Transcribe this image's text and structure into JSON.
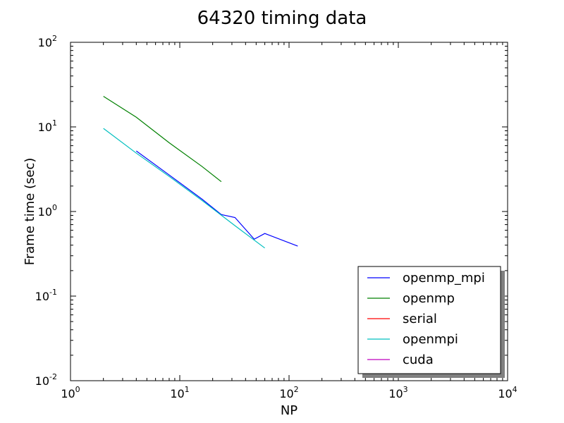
{
  "chart_data": {
    "type": "line",
    "title": "64320 timing data",
    "xlabel": "NP",
    "ylabel": "Frame time (sec)",
    "xscale": "log",
    "yscale": "log",
    "xlim": [
      1,
      10000
    ],
    "ylim": [
      0.01,
      100
    ],
    "x_ticks": [
      {
        "value": 1,
        "base": "10",
        "exp": "0"
      },
      {
        "value": 10,
        "base": "10",
        "exp": "1"
      },
      {
        "value": 100,
        "base": "10",
        "exp": "2"
      },
      {
        "value": 1000,
        "base": "10",
        "exp": "3"
      },
      {
        "value": 10000,
        "base": "10",
        "exp": "4"
      }
    ],
    "y_ticks": [
      {
        "value": 0.01,
        "base": "10",
        "exp": "-2"
      },
      {
        "value": 0.1,
        "base": "10",
        "exp": "-1"
      },
      {
        "value": 1,
        "base": "10",
        "exp": "0"
      },
      {
        "value": 10,
        "base": "10",
        "exp": "1"
      },
      {
        "value": 100,
        "base": "10",
        "exp": "2"
      }
    ],
    "grid": false,
    "legend_position": "lower-right",
    "series": [
      {
        "name": "openmp_mpi",
        "color": "#0000ff",
        "x": [
          4,
          8,
          16,
          24,
          32,
          48,
          60,
          120
        ],
        "y": [
          5.2,
          2.7,
          1.4,
          0.92,
          0.85,
          0.47,
          0.55,
          0.39
        ]
      },
      {
        "name": "openmp",
        "color": "#008000",
        "x": [
          2,
          4,
          8,
          16,
          24
        ],
        "y": [
          23,
          13,
          6.5,
          3.4,
          2.25
        ]
      },
      {
        "name": "serial",
        "color": "#ff0000",
        "x": [],
        "y": []
      },
      {
        "name": "openmpi",
        "color": "#00bfbf",
        "x": [
          2,
          4,
          8,
          16,
          32,
          60
        ],
        "y": [
          9.6,
          4.9,
          2.6,
          1.35,
          0.68,
          0.37
        ]
      },
      {
        "name": "cuda",
        "color": "#bf00bf",
        "x": [],
        "y": []
      }
    ]
  }
}
